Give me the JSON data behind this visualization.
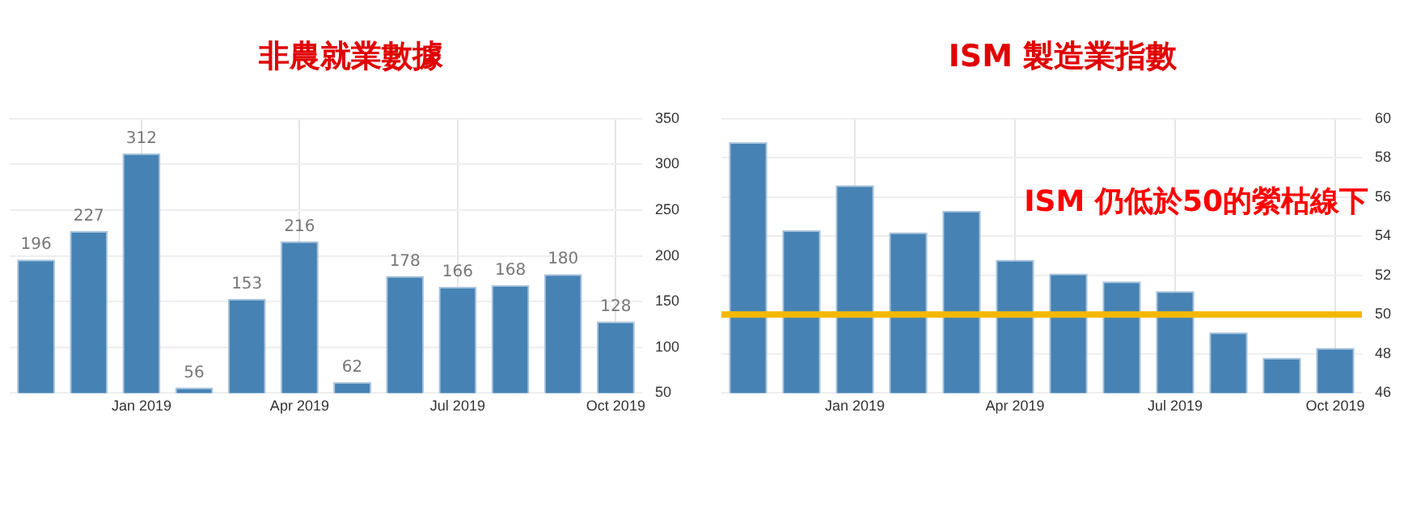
{
  "chart_data": [
    {
      "type": "bar",
      "title": "非農就業數據",
      "categories": [
        null,
        null,
        "Jan 2019",
        null,
        null,
        "Apr 2019",
        null,
        null,
        "Jul 2019",
        null,
        null,
        "Oct 2019"
      ],
      "values": [
        196,
        227,
        312,
        56,
        153,
        216,
        62,
        178,
        166,
        168,
        180,
        128
      ],
      "color": "#4682b4",
      "ylim": [
        50,
        350
      ],
      "yticks": [
        50,
        100,
        150,
        200,
        250,
        300,
        350
      ],
      "grid": true,
      "data_labels": true
    },
    {
      "type": "bar",
      "title": "ISM 製造業指數",
      "categories": [
        null,
        null,
        "Jan 2019",
        null,
        null,
        "Apr 2019",
        null,
        null,
        "Jul 2019",
        null,
        null,
        "Oct 2019"
      ],
      "values": [
        58.8,
        54.3,
        56.6,
        54.2,
        55.3,
        52.8,
        52.1,
        51.7,
        51.2,
        49.1,
        47.8,
        48.3
      ],
      "color": "#4682b4",
      "ylim": [
        46,
        60
      ],
      "yticks": [
        46,
        48,
        50,
        52,
        54,
        56,
        58,
        60
      ],
      "grid": true,
      "ref_lines": [
        {
          "axis": "y",
          "value": 50,
          "color": "#f5b800"
        }
      ],
      "annotations": [
        "ISM 仍低於50的縈枯線下"
      ]
    }
  ]
}
